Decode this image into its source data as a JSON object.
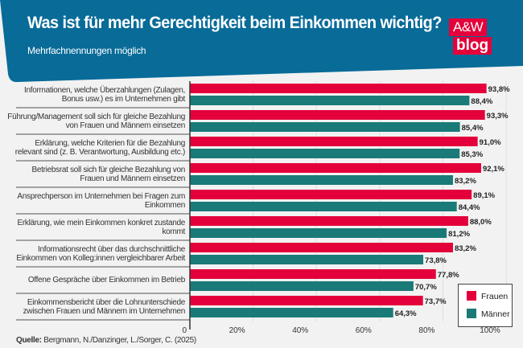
{
  "header": {
    "title": "Was ist für mehr Gerechtigkeit beim Einkommen wichtig?",
    "subtitle": "Mehrfachnennungen möglich",
    "logo_top": "A&W",
    "logo_bottom": "blog"
  },
  "colors": {
    "header": "#086b98",
    "frauen": "#e4003a",
    "maenner": "#1a7a78"
  },
  "source_label": "Quelle:",
  "source": "Bergmann, N./Danzinger, L./Sorger, C. (2025)",
  "chart_data": {
    "type": "bar",
    "orientation": "horizontal",
    "categories": [
      "Informationen, welche Überzahlungen (Zulagen, Bonus usw.) es im Unternehmen gibt",
      "Führung/Management soll sich für gleiche Bezahlung von Frauen und Männern einsetzen",
      "Erklärung, welche Kriterien für die Bezahlung relevant sind (z. B. Verantwortung, Ausbildung etc.)",
      "Betriebsrat soll sich für gleiche Bezahlung von Frauen und Männern einsetzen",
      "Ansprechperson im Unternehmen bei Fragen zum Einkommen",
      "Erklärung, wie mein Einkommen konkret zustande kommt",
      "Informationsrecht über das durchschnittliche Einkommen von Kolleg:innen vergleichbarer Arbeit",
      "Offene Gespräche über Einkommen im Betrieb",
      "Einkommensbericht über die Lohnunterschiede zwischen Frauen und Männern im Unternehmen"
    ],
    "series": [
      {
        "name": "Frauen",
        "values": [
          93.8,
          93.3,
          91.0,
          92.1,
          89.1,
          88.0,
          83.2,
          77.8,
          73.7
        ],
        "labels": [
          "93,8%",
          "93,3%",
          "91,0%",
          "92,1%",
          "89,1%",
          "88,0%",
          "83,2%",
          "77,8%",
          "73,7%"
        ]
      },
      {
        "name": "Männer",
        "values": [
          88.4,
          85.4,
          85.3,
          83.2,
          84.4,
          81.2,
          73.8,
          70.7,
          64.3
        ],
        "labels": [
          "88,4%",
          "85,4%",
          "85,3%",
          "83,2%",
          "84,4%",
          "81,2%",
          "73,8%",
          "70,7%",
          "64,3%"
        ]
      }
    ],
    "xlim": [
      0,
      100
    ],
    "xticks": [
      "0",
      "20%",
      "40%",
      "60%",
      "80%",
      "100%"
    ],
    "grid": true,
    "legend": "bottom-right"
  }
}
